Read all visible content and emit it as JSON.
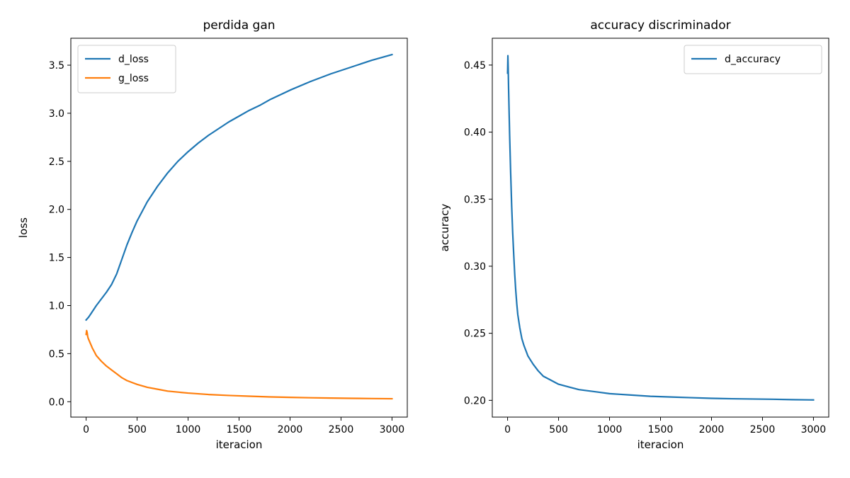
{
  "chart_data": [
    {
      "type": "line",
      "title": "perdida gan",
      "xlabel": "iteracion",
      "ylabel": "loss",
      "xlim": [
        -150,
        3150
      ],
      "ylim": [
        -0.16,
        3.78
      ],
      "xticks": [
        0,
        500,
        1000,
        1500,
        2000,
        2500,
        3000
      ],
      "xtick_labels": [
        "0",
        "500",
        "1000",
        "1500",
        "2000",
        "2500",
        "3000"
      ],
      "yticks": [
        0.0,
        0.5,
        1.0,
        1.5,
        2.0,
        2.5,
        3.0,
        3.5
      ],
      "ytick_labels": [
        "0.0",
        "0.5",
        "1.0",
        "1.5",
        "2.0",
        "2.5",
        "3.0",
        "3.5"
      ],
      "grid": false,
      "legend": "top-left",
      "series": [
        {
          "name": "d_loss",
          "color": "#1f77b4",
          "x": [
            0,
            25,
            50,
            100,
            150,
            200,
            250,
            300,
            350,
            400,
            450,
            500,
            600,
            700,
            800,
            900,
            1000,
            1100,
            1200,
            1300,
            1400,
            1500,
            1600,
            1700,
            1800,
            1900,
            2000,
            2200,
            2400,
            2600,
            2800,
            3000
          ],
          "y": [
            0.85,
            0.88,
            0.92,
            1.0,
            1.07,
            1.14,
            1.22,
            1.33,
            1.48,
            1.63,
            1.76,
            1.88,
            2.08,
            2.24,
            2.38,
            2.5,
            2.6,
            2.69,
            2.77,
            2.84,
            2.91,
            2.97,
            3.03,
            3.08,
            3.14,
            3.19,
            3.24,
            3.33,
            3.41,
            3.48,
            3.55,
            3.61
          ]
        },
        {
          "name": "g_loss",
          "color": "#ff7f0e",
          "x": [
            0,
            5,
            10,
            15,
            20,
            40,
            60,
            80,
            100,
            150,
            200,
            250,
            300,
            350,
            400,
            450,
            500,
            600,
            700,
            800,
            900,
            1000,
            1200,
            1400,
            1600,
            1800,
            2000,
            2200,
            2400,
            2600,
            2800,
            3000
          ],
          "y": [
            0.7,
            0.74,
            0.72,
            0.68,
            0.66,
            0.61,
            0.56,
            0.52,
            0.48,
            0.42,
            0.37,
            0.33,
            0.29,
            0.25,
            0.22,
            0.2,
            0.18,
            0.15,
            0.13,
            0.11,
            0.1,
            0.09,
            0.075,
            0.065,
            0.057,
            0.05,
            0.045,
            0.041,
            0.038,
            0.035,
            0.033,
            0.031
          ]
        }
      ]
    },
    {
      "type": "line",
      "title": "accuracy discriminador",
      "xlabel": "iteracion",
      "ylabel": "accuracy",
      "xlim": [
        -150,
        3150
      ],
      "ylim": [
        0.1875,
        0.47
      ],
      "xticks": [
        0,
        500,
        1000,
        1500,
        2000,
        2500,
        3000
      ],
      "xtick_labels": [
        "0",
        "500",
        "1000",
        "1500",
        "2000",
        "2500",
        "3000"
      ],
      "yticks": [
        0.2,
        0.25,
        0.3,
        0.35,
        0.4,
        0.45
      ],
      "ytick_labels": [
        "0.20",
        "0.25",
        "0.30",
        "0.35",
        "0.40",
        "0.45"
      ],
      "grid": false,
      "legend": "top-right",
      "series": [
        {
          "name": "d_accuracy",
          "color": "#1f77b4",
          "x": [
            0,
            3,
            6,
            10,
            15,
            20,
            30,
            40,
            50,
            60,
            70,
            80,
            90,
            100,
            120,
            140,
            160,
            180,
            200,
            250,
            300,
            350,
            400,
            500,
            600,
            700,
            800,
            900,
            1000,
            1100,
            1200,
            1400,
            1600,
            1800,
            2000,
            2200,
            2400,
            2600,
            2800,
            3000
          ],
          "y": [
            0.444,
            0.457,
            0.448,
            0.432,
            0.415,
            0.398,
            0.37,
            0.345,
            0.325,
            0.309,
            0.294,
            0.282,
            0.272,
            0.264,
            0.254,
            0.246,
            0.241,
            0.237,
            0.233,
            0.227,
            0.222,
            0.218,
            0.216,
            0.212,
            0.21,
            0.208,
            0.207,
            0.206,
            0.205,
            0.2045,
            0.204,
            0.203,
            0.2025,
            0.202,
            0.2015,
            0.2012,
            0.201,
            0.2008,
            0.2005,
            0.2003
          ]
        }
      ]
    }
  ]
}
